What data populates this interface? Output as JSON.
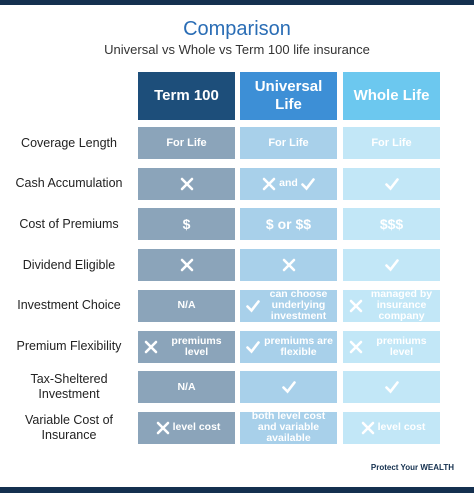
{
  "header": {
    "title": "Comparison",
    "subtitle": "Universal vs Whole vs Term 100 life insurance"
  },
  "table": {
    "columns": [
      "Term 100",
      "Universal Life",
      "Whole Life"
    ],
    "rows": [
      {
        "label": "Coverage Length",
        "c0": "For Life",
        "c1": "For Life",
        "c2": "For Life"
      },
      {
        "label": "Cash Accumulation",
        "c1": "and"
      },
      {
        "label": "Cost of Premiums",
        "c0": "$",
        "c1": "$ or $$",
        "c2": "$$$"
      },
      {
        "label": "Dividend Eligible"
      },
      {
        "label": "Investment Choice",
        "c0": "N/A",
        "c1": "can choose underlying investment",
        "c2": "managed by insurance company"
      },
      {
        "label": "Premium Flexibility",
        "c0": "premiums level",
        "c1": "premiums are flexible",
        "c2": "premiums level"
      },
      {
        "label": "Tax-Sheltered Investment",
        "c0": "N/A"
      },
      {
        "label": "Variable Cost of Insurance",
        "c0": "level cost",
        "c1": "both level cost and variable available",
        "c2": "level cost"
      }
    ]
  },
  "footer": {
    "logo": "Protect Your WEALTH"
  }
}
